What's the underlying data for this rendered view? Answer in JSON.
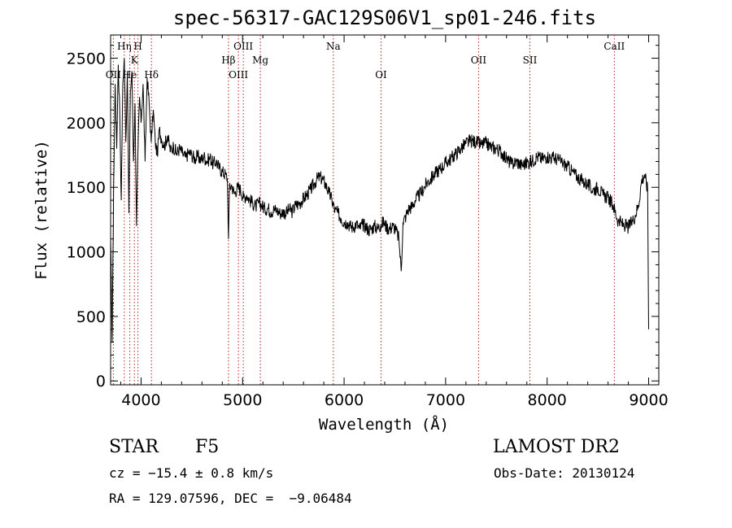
{
  "chart_data": {
    "type": "line",
    "title": "spec-56317-GAC129S06V1_sp01-246.fits",
    "xlabel": "Wavelength (Å)",
    "ylabel": "Flux (relative)",
    "xlim": [
      3700,
      9100
    ],
    "ylim": [
      -30,
      2680
    ],
    "xticks": [
      4000,
      5000,
      6000,
      7000,
      8000,
      9000
    ],
    "yticks": [
      0,
      500,
      1000,
      1500,
      2000,
      2500
    ],
    "grid": false,
    "line_color": "#000000",
    "marker_color": "#b22222",
    "series": [
      {
        "x": [
          3700,
          3715,
          3730,
          3745,
          3760,
          3775,
          3790,
          3805,
          3820,
          3835,
          3850,
          3865,
          3880,
          3895,
          3910,
          3925,
          3940,
          3955,
          3970,
          3985,
          4000,
          4020,
          4040,
          4060,
          4080,
          4100,
          4120,
          4140,
          4160,
          4180,
          4200,
          4230,
          4260,
          4290,
          4320,
          4350,
          4380,
          4410,
          4440,
          4470,
          4500,
          4530,
          4560,
          4590,
          4620,
          4650,
          4680,
          4710,
          4740,
          4770,
          4800,
          4830,
          4850,
          4861,
          4870,
          4890,
          4920,
          4950,
          4980,
          5010,
          5040,
          5070,
          5100,
          5130,
          5160,
          5190,
          5220,
          5250,
          5280,
          5310,
          5340,
          5370,
          5400,
          5430,
          5460,
          5490,
          5520,
          5550,
          5580,
          5610,
          5640,
          5670,
          5700,
          5730,
          5760,
          5790,
          5820,
          5850,
          5880,
          5910,
          5940,
          5970,
          6000,
          6030,
          6060,
          6090,
          6120,
          6150,
          6180,
          6210,
          6240,
          6270,
          6300,
          6330,
          6360,
          6390,
          6420,
          6450,
          6480,
          6510,
          6540,
          6563,
          6580,
          6610,
          6640,
          6670,
          6700,
          6730,
          6760,
          6790,
          6820,
          6850,
          6880,
          6910,
          6940,
          6970,
          7000,
          7050,
          7100,
          7150,
          7200,
          7250,
          7300,
          7350,
          7400,
          7450,
          7500,
          7550,
          7600,
          7650,
          7700,
          7750,
          7800,
          7850,
          7900,
          7950,
          8000,
          8050,
          8100,
          8150,
          8200,
          8250,
          8300,
          8350,
          8400,
          8450,
          8500,
          8550,
          8600,
          8650,
          8700,
          8750,
          8800,
          8850,
          8900,
          8930,
          8960,
          8990,
          9000
        ],
        "y": [
          1100,
          300,
          1500,
          2300,
          1800,
          2450,
          2100,
          1400,
          2300,
          2500,
          1850,
          2400,
          1300,
          2250,
          2400,
          1700,
          2150,
          1200,
          1800,
          2200,
          2000,
          2300,
          1700,
          2350,
          2150,
          1850,
          2100,
          1850,
          1750,
          1950,
          1880,
          1820,
          1900,
          1780,
          1820,
          1760,
          1800,
          1760,
          1730,
          1770,
          1750,
          1720,
          1740,
          1710,
          1740,
          1700,
          1730,
          1680,
          1700,
          1650,
          1620,
          1600,
          1570,
          1100,
          1480,
          1520,
          1450,
          1500,
          1480,
          1420,
          1440,
          1400,
          1380,
          1350,
          1380,
          1360,
          1330,
          1340,
          1310,
          1330,
          1320,
          1300,
          1310,
          1300,
          1330,
          1310,
          1360,
          1370,
          1390,
          1420,
          1450,
          1480,
          1520,
          1560,
          1580,
          1560,
          1520,
          1460,
          1400,
          1320,
          1300,
          1260,
          1230,
          1230,
          1200,
          1190,
          1220,
          1180,
          1210,
          1200,
          1170,
          1180,
          1200,
          1180,
          1210,
          1230,
          1190,
          1180,
          1200,
          1170,
          1100,
          850,
          1230,
          1280,
          1340,
          1350,
          1400,
          1430,
          1460,
          1500,
          1540,
          1560,
          1590,
          1620,
          1640,
          1660,
          1690,
          1720,
          1760,
          1800,
          1840,
          1860,
          1850,
          1830,
          1840,
          1810,
          1800,
          1770,
          1720,
          1680,
          1700,
          1670,
          1690,
          1700,
          1740,
          1720,
          1740,
          1730,
          1720,
          1690,
          1660,
          1620,
          1580,
          1550,
          1520,
          1480,
          1500,
          1440,
          1420,
          1360,
          1240,
          1210,
          1190,
          1250,
          1360,
          1550,
          1600,
          1480,
          400
        ]
      }
    ],
    "lines": [
      {
        "name": "OII",
        "x": 3727,
        "row": 3
      },
      {
        "name": "Hη",
        "x": 3835,
        "row": 1
      },
      {
        "name": "He",
        "x": 3889,
        "row": 3
      },
      {
        "name": "K",
        "x": 3934,
        "row": 2
      },
      {
        "name": "H",
        "x": 3969,
        "row": 1
      },
      {
        "name": "Hδ",
        "x": 4102,
        "row": 3
      },
      {
        "name": "Hβ",
        "x": 4861,
        "row": 2
      },
      {
        "name": "OIII",
        "x": 4959,
        "row": 3
      },
      {
        "name": "OIII",
        "x": 5007,
        "row": 1
      },
      {
        "name": "Mg",
        "x": 5175,
        "row": 2
      },
      {
        "name": "Na",
        "x": 5894,
        "row": 1
      },
      {
        "name": "OI",
        "x": 6364,
        "row": 3
      },
      {
        "name": "OII",
        "x": 7325,
        "row": 2
      },
      {
        "name": "SII",
        "x": 7830,
        "row": 2
      },
      {
        "name": "CaII",
        "x": 8662,
        "row": 1
      }
    ]
  },
  "footer": {
    "class_label": "STAR",
    "subclass": "F5",
    "survey": "LAMOST DR2",
    "cz": "cz = −15.4 ± 0.8 km/s",
    "obs_date": "Obs-Date: 20130124",
    "coords": "RA = 129.07596, DEC =  −9.06484"
  }
}
